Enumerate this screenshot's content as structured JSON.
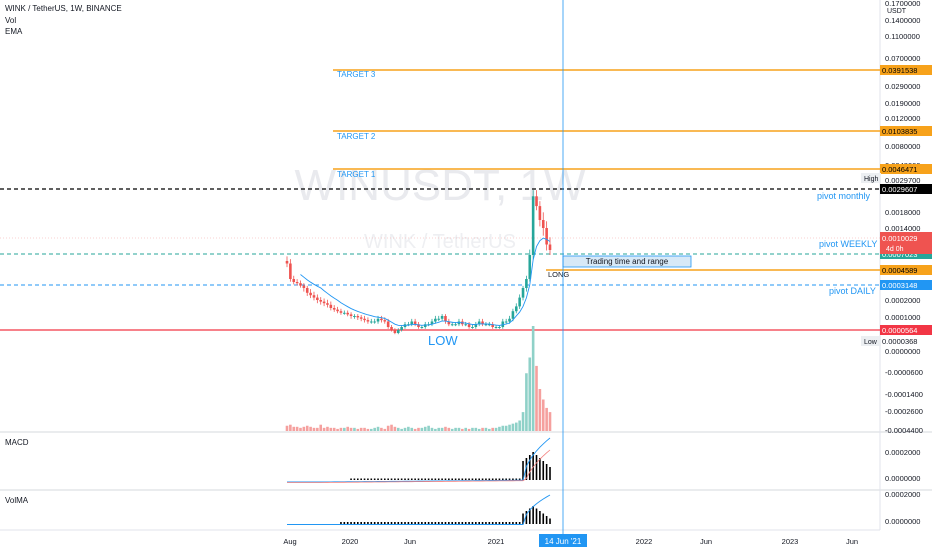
{
  "header": {
    "symbol": "WINK / TetherUS, 1W, BINANCE",
    "ind1": "Vol",
    "ind2": "EMA"
  },
  "watermark": {
    "ticker": "WINUSDT, 1W",
    "sub": "WINK / TetherUS"
  },
  "currency": "USDT",
  "colors": {
    "up": "#26a69a",
    "down": "#ef5350",
    "target": "#f7a21b",
    "low_line": "#f23645",
    "accent": "#2196f3",
    "pivot": "#2196f3",
    "ema": "#2196f3",
    "black": "#000000"
  },
  "price_ticks": [
    "0.1700000",
    "0.1400000",
    "0.1100000",
    "0.0700000",
    "0.0450000",
    "0.0290000",
    "0.0190000",
    "0.0120000",
    "0.0080000",
    "0.0048000",
    "0.0029700",
    "0.0018000",
    "0.0014000",
    "0.0010000",
    "0.0006000",
    "0.0002000",
    "0.0001000",
    "0.0000000",
    "-0.0000600",
    "-0.0001400",
    "-0.0002600",
    "-0.0004400"
  ],
  "levels": [
    {
      "name": "target-3",
      "label": "TARGET 3",
      "price": "0.0391538",
      "type": "target"
    },
    {
      "name": "target-2",
      "label": "TARGET 2",
      "price": "0.0103835",
      "type": "target"
    },
    {
      "name": "target-1",
      "label": "TARGET 1",
      "price": "0.0046471",
      "type": "target"
    },
    {
      "name": "pivot-monthly",
      "label": "pivot monthly",
      "price": "0.0029607",
      "type": "monthly"
    },
    {
      "name": "pivot-weekly",
      "label": "pivot WEEKLY",
      "price": "0.0007023",
      "type": "weekly"
    },
    {
      "name": "long",
      "label": "LONG",
      "price": "0.0004589",
      "type": "long"
    },
    {
      "name": "pivot-daily",
      "label": "pivot DAILY",
      "price": "0.0003148",
      "type": "daily"
    },
    {
      "name": "low",
      "label": "LOW",
      "price": "0.0000564",
      "type": "low"
    }
  ],
  "current_price": {
    "price": "0.0010029",
    "countdown": "4d 0h"
  },
  "high_badge": "High",
  "low_badge": {
    "label": "Low",
    "price": "0.0000368"
  },
  "annotation": "Trading time and range",
  "macd": {
    "title": "MACD",
    "ticks": [
      "0.0002000",
      "0.0000000"
    ]
  },
  "volma": {
    "title": "VolMA",
    "ticks": [
      "0.0002000",
      "0.0000000"
    ]
  },
  "time_axis": {
    "ticks": [
      "Aug",
      "2020",
      "Jun",
      "2021",
      "2022",
      "Jun",
      "2023",
      "Jun"
    ],
    "cursor_label": "14 Jun '21"
  },
  "chart_data": {
    "type": "candlestick",
    "interval": "1W",
    "title": "WINK / TetherUS, 1W, BINANCE",
    "note": "approximate weekly closes, Jul 2019 – Jun 2021",
    "closes": [
      0.00073,
      0.00045,
      0.0004,
      0.00038,
      0.00034,
      0.0003,
      0.00026,
      0.00024,
      0.00022,
      0.0002,
      0.00019,
      0.00018,
      0.00017,
      0.00015,
      0.00014,
      0.00013,
      0.00012,
      0.00012,
      0.00011,
      0.0001,
      0.0001,
      9.5e-05,
      9e-05,
      8.5e-05,
      8e-05,
      8e-05,
      8e-05,
      9e-05,
      8.5e-05,
      8e-05,
      6e-05,
      5e-05,
      4e-05,
      5e-05,
      6e-05,
      7e-05,
      7e-05,
      8e-05,
      7e-05,
      6e-05,
      6e-05,
      7e-05,
      7e-05,
      8e-05,
      9e-05,
      9e-05,
      0.0001,
      8e-05,
      7e-05,
      7e-05,
      7e-05,
      8e-05,
      7e-05,
      7e-05,
      6e-05,
      6e-05,
      7e-05,
      8e-05,
      7e-05,
      7e-05,
      7e-05,
      6e-05,
      6e-05,
      6e-05,
      8e-05,
      8e-05,
      9e-05,
      0.00013,
      0.00016,
      0.00022,
      0.0003,
      0.00045,
      0.0009,
      0.0026,
      0.0021,
      0.0016,
      0.0014,
      0.0011,
      0.001
    ],
    "volume_relative": [
      0.05,
      0.06,
      0.04,
      0.04,
      0.03,
      0.04,
      0.05,
      0.04,
      0.03,
      0.03,
      0.06,
      0.03,
      0.04,
      0.03,
      0.03,
      0.02,
      0.03,
      0.03,
      0.04,
      0.03,
      0.03,
      0.02,
      0.03,
      0.03,
      0.02,
      0.02,
      0.03,
      0.04,
      0.03,
      0.02,
      0.05,
      0.06,
      0.04,
      0.03,
      0.02,
      0.03,
      0.04,
      0.03,
      0.02,
      0.03,
      0.03,
      0.04,
      0.05,
      0.03,
      0.02,
      0.03,
      0.03,
      0.04,
      0.03,
      0.02,
      0.03,
      0.03,
      0.02,
      0.03,
      0.02,
      0.03,
      0.03,
      0.02,
      0.03,
      0.03,
      0.02,
      0.03,
      0.03,
      0.04,
      0.05,
      0.05,
      0.06,
      0.07,
      0.08,
      0.1,
      0.18,
      0.55,
      0.7,
      1.0,
      0.62,
      0.4,
      0.3,
      0.22,
      0.18
    ]
  }
}
